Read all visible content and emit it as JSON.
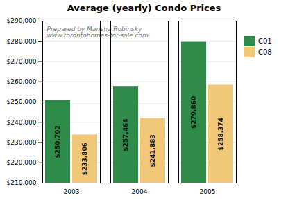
{
  "chart_data": {
    "type": "bar",
    "title": "Average (yearly) Condo Prices",
    "categories": [
      "2003",
      "2004",
      "2005"
    ],
    "series": [
      {
        "name": "C01",
        "color": "#2e8b4a",
        "values": [
          250792,
          257464,
          279860
        ],
        "value_labels": [
          "$250,792",
          "$257,464",
          "$279,860"
        ]
      },
      {
        "name": "C08",
        "color": "#f0c878",
        "values": [
          233806,
          241883,
          258374
        ],
        "value_labels": [
          "$233,806",
          "$241,883",
          "$258,374"
        ]
      }
    ],
    "ylim": [
      210000,
      290000
    ],
    "yticks": [
      {
        "value": 210000,
        "label": "$210,000"
      },
      {
        "value": 220000,
        "label": "$220,000"
      },
      {
        "value": 230000,
        "label": "$230,000"
      },
      {
        "value": 240000,
        "label": "$240,000"
      },
      {
        "value": 250000,
        "label": "$250,000"
      },
      {
        "value": 260000,
        "label": "$260,000"
      },
      {
        "value": 270000,
        "label": "$270,000"
      },
      {
        "value": 280000,
        "label": "$280,000"
      },
      {
        "value": 290000,
        "label": "$290,000"
      }
    ],
    "grid": true,
    "legend": "right",
    "data_labels": true,
    "annotations": [
      "Prepared by Marisha Robinsky",
      "www.torontohomes-for-sale.com"
    ]
  }
}
